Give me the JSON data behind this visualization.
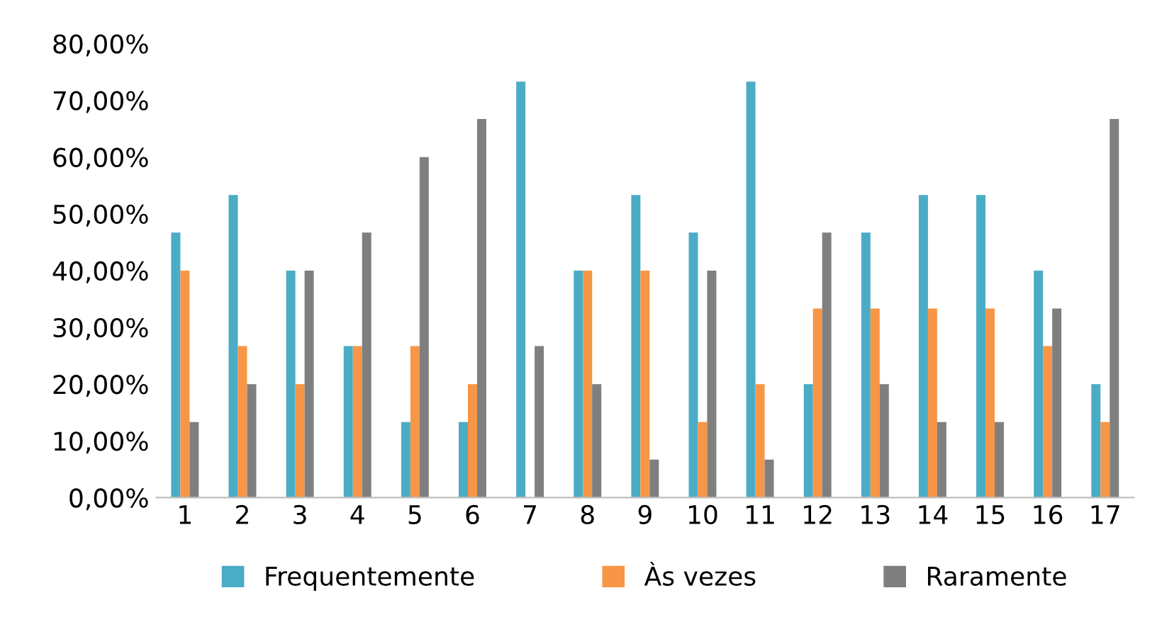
{
  "chart_data": {
    "type": "bar",
    "categories": [
      "1",
      "2",
      "3",
      "4",
      "5",
      "6",
      "7",
      "8",
      "9",
      "10",
      "11",
      "12",
      "13",
      "14",
      "15",
      "16",
      "17"
    ],
    "series": [
      {
        "name": "Frequentemente",
        "color": "#4bacc6",
        "values": [
          46.7,
          53.3,
          40,
          26.7,
          13.3,
          13.3,
          73.3,
          40,
          53.3,
          46.7,
          73.3,
          20,
          46.7,
          53.3,
          53.3,
          40,
          20
        ]
      },
      {
        "name": "Às vezes",
        "color": "#f79646",
        "values": [
          40,
          26.7,
          20,
          26.7,
          26.7,
          20,
          0,
          40,
          40,
          13.3,
          20,
          33.3,
          33.3,
          33.3,
          33.3,
          26.7,
          13.3
        ]
      },
      {
        "name": "Raramente",
        "color": "#7f7f7f",
        "values": [
          13.3,
          20,
          40,
          46.7,
          60,
          66.7,
          26.7,
          20,
          6.7,
          40,
          6.7,
          46.7,
          20,
          13.3,
          13.3,
          33.3,
          66.7
        ]
      }
    ],
    "ylim": [
      0,
      80
    ],
    "yticks": [
      {
        "value": 0,
        "label": "0,00%"
      },
      {
        "value": 10,
        "label": "10,00%"
      },
      {
        "value": 20,
        "label": "20,00%"
      },
      {
        "value": 30,
        "label": "30,00%"
      },
      {
        "value": 40,
        "label": "40,00%"
      },
      {
        "value": 50,
        "label": "50,00%"
      },
      {
        "value": 60,
        "label": "60,00%"
      },
      {
        "value": 70,
        "label": "70,00%"
      },
      {
        "value": 80,
        "label": "80,00%"
      }
    ],
    "grid": false,
    "legend": "bottom"
  }
}
